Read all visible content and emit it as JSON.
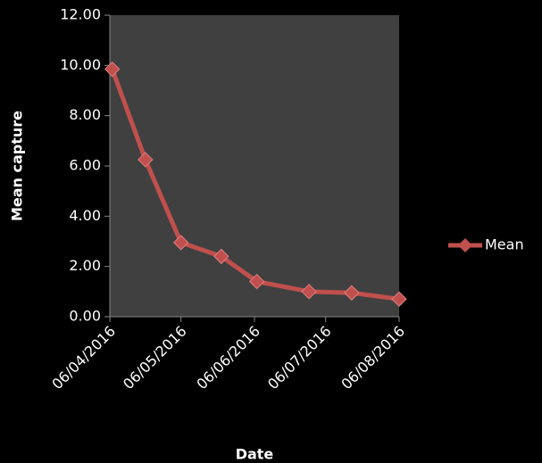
{
  "chart_data": {
    "type": "line",
    "x_label": "Date",
    "y_label": "Mean capture",
    "x": [
      1,
      15,
      30,
      47,
      62,
      84,
      102,
      122
    ],
    "series": [
      {
        "name": "Mean",
        "color": "#c0504d",
        "values": [
          9.85,
          6.25,
          2.95,
          2.4,
          1.4,
          1.0,
          0.95,
          0.7
        ]
      }
    ],
    "xlim": [
      0,
      122
    ],
    "xticks": [
      {
        "value": 0,
        "label": "06/04/2016"
      },
      {
        "value": 30,
        "label": "06/05/2016"
      },
      {
        "value": 61,
        "label": "06/06/2016"
      },
      {
        "value": 91,
        "label": "06/07/2016"
      },
      {
        "value": 122,
        "label": "06/08/2016"
      }
    ],
    "ylim": [
      0,
      12
    ],
    "yticks": [
      {
        "value": 0,
        "label": "0.00"
      },
      {
        "value": 2,
        "label": "2.00"
      },
      {
        "value": 4,
        "label": "4.00"
      },
      {
        "value": 6,
        "label": "6.00"
      },
      {
        "value": 8,
        "label": "8.00"
      },
      {
        "value": 10,
        "label": "10.00"
      },
      {
        "value": 12,
        "label": "12.00"
      }
    ],
    "legend": "right"
  }
}
